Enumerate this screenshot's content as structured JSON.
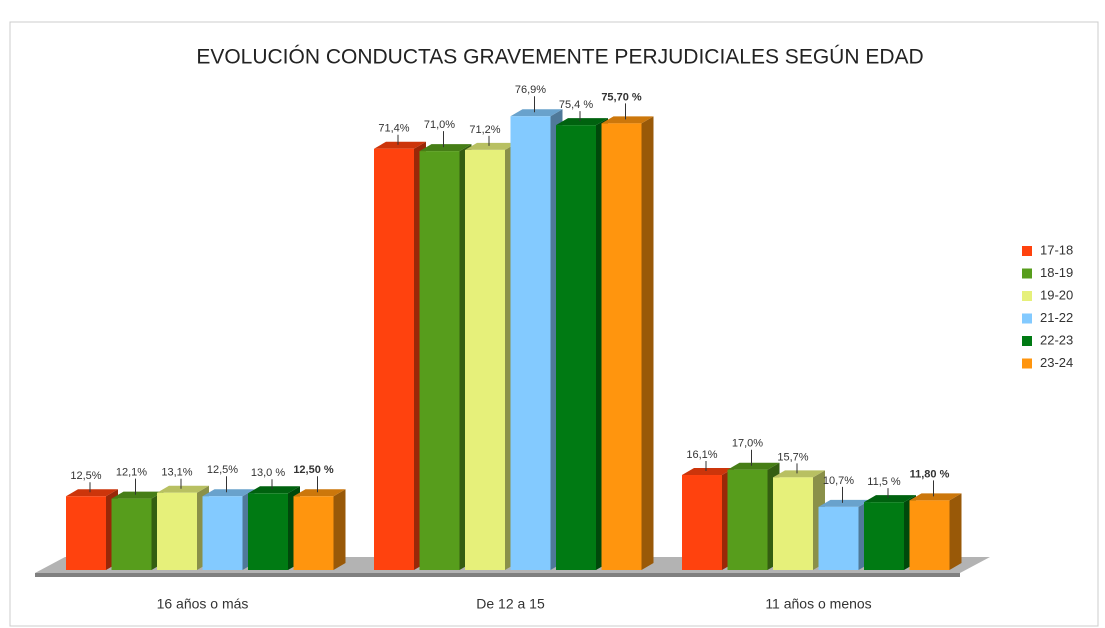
{
  "chart_data": {
    "type": "bar3d",
    "title": "EVOLUCIÓN CONDUCTAS GRAVEMENTE PERJUDICIALES SEGÚN EDAD",
    "categories": [
      "16 años o más",
      "De 12 a 15",
      "11 años o menos"
    ],
    "series": [
      {
        "name": "17-18",
        "color": "#ff420e",
        "values": [
          12.5,
          71.4,
          16.1
        ],
        "value_labels": [
          "12,5%",
          "71,4%",
          "16,1%"
        ]
      },
      {
        "name": "18-19",
        "color": "#579d1c",
        "values": [
          12.1,
          71.0,
          17.0
        ],
        "value_labels": [
          "12,1%",
          "71,0%",
          "17,0%"
        ]
      },
      {
        "name": "19-20",
        "color": "#e6f07a",
        "values": [
          13.1,
          71.2,
          15.7
        ],
        "value_labels": [
          "13,1%",
          "71,2%",
          "15,7%"
        ]
      },
      {
        "name": "21-22",
        "color": "#83caff",
        "values": [
          12.5,
          76.9,
          10.7
        ],
        "value_labels": [
          "12,5%",
          "76,9%",
          "10,7%"
        ]
      },
      {
        "name": "22-23",
        "color": "#007a13",
        "values": [
          13.0,
          75.4,
          11.5
        ],
        "value_labels": [
          "13,0 %",
          "75,4 %",
          "11,5 %"
        ]
      },
      {
        "name": "23-24",
        "color": "#ff950e",
        "values": [
          12.5,
          75.7,
          11.8
        ],
        "value_labels": [
          "12,50 %",
          "75,70 %",
          "11,80 %"
        ]
      }
    ],
    "legend": "right"
  }
}
